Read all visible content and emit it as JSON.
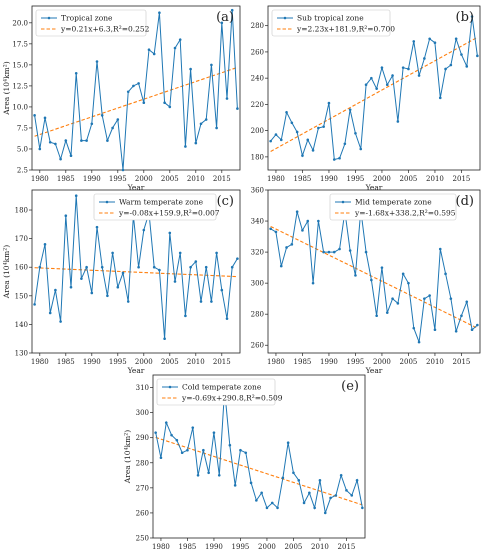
{
  "chart_data": [
    {
      "type": "line",
      "panel_tag": "(a)",
      "xlabel": "Year",
      "ylabel": "Area (10⁴km²)",
      "xlim": [
        1978.5,
        2018.5
      ],
      "ylim": [
        2.5,
        22
      ],
      "xticks": [
        1980,
        1985,
        1990,
        1995,
        2000,
        2005,
        2010,
        2015
      ],
      "yticks": [
        2.5,
        5.0,
        7.5,
        10.0,
        12.5,
        15.0,
        17.5,
        20.0
      ],
      "ytick_labels": [
        "2.5",
        "5.0",
        "7.5",
        "10.0",
        "12.5",
        "15.0",
        "17.5",
        "20.0"
      ],
      "legend_position": "top-left",
      "series": [
        {
          "name": "Tropical zone",
          "x": [
            1979,
            1980,
            1981,
            1982,
            1983,
            1984,
            1985,
            1986,
            1987,
            1988,
            1989,
            1990,
            1991,
            1992,
            1993,
            1994,
            1995,
            1996,
            1997,
            1998,
            1999,
            2000,
            2001,
            2002,
            2003,
            2004,
            2005,
            2006,
            2007,
            2008,
            2009,
            2010,
            2011,
            2012,
            2013,
            2014,
            2015,
            2016,
            2017,
            2018
          ],
          "values": [
            9.0,
            5.0,
            8.7,
            5.8,
            5.6,
            3.8,
            6.0,
            4.2,
            14.0,
            6.0,
            6.0,
            8.0,
            15.4,
            9.0,
            6.0,
            7.5,
            8.5,
            2.5,
            11.8,
            12.5,
            12.8,
            10.5,
            16.8,
            16.3,
            21.2,
            10.5,
            10.0,
            17.0,
            18.0,
            5.3,
            14.5,
            5.7,
            8.0,
            8.5,
            15.0,
            7.5,
            20.0,
            11.0,
            21.5,
            9.8
          ]
        }
      ],
      "trend": {
        "name": "y=0.21x+6.3,R²=0.252",
        "slope": 0.21,
        "intercept": 6.3
      }
    },
    {
      "type": "line",
      "panel_tag": "(b)",
      "xlabel": "Year",
      "ylabel": "",
      "xlim": [
        1978.5,
        2018.5
      ],
      "ylim": [
        170,
        295
      ],
      "xticks": [
        1980,
        1985,
        1990,
        1995,
        2000,
        2005,
        2010,
        2015
      ],
      "yticks": [
        180,
        200,
        220,
        240,
        260,
        280
      ],
      "ytick_labels": [
        "180",
        "200",
        "220",
        "240",
        "260",
        "280"
      ],
      "legend_position": "top-left",
      "series": [
        {
          "name": "Sub tropical zone",
          "x": [
            1979,
            1980,
            1981,
            1982,
            1983,
            1984,
            1985,
            1986,
            1987,
            1988,
            1989,
            1990,
            1991,
            1992,
            1993,
            1994,
            1995,
            1996,
            1997,
            1998,
            1999,
            2000,
            2001,
            2002,
            2003,
            2004,
            2005,
            2006,
            2007,
            2008,
            2009,
            2010,
            2011,
            2012,
            2013,
            2014,
            2015,
            2016,
            2017,
            2018
          ],
          "values": [
            192,
            197,
            193,
            214,
            206,
            199,
            181,
            193,
            185,
            202,
            203,
            221,
            178,
            179,
            190,
            216,
            198,
            186,
            235,
            240,
            232,
            248,
            235,
            242,
            207,
            248,
            247,
            268,
            242,
            255,
            270,
            267,
            225,
            247,
            250,
            270,
            258,
            249,
            287,
            257
          ]
        }
      ],
      "trend": {
        "name": "y=2.23x+181.9,R²=0.700",
        "slope": 2.23,
        "intercept": 181.9
      }
    },
    {
      "type": "line",
      "panel_tag": "(c)",
      "xlabel": "Year",
      "ylabel": "Area (10⁴km²)",
      "xlim": [
        1978.5,
        2018.5
      ],
      "ylim": [
        130,
        187
      ],
      "xticks": [
        1980,
        1985,
        1990,
        1995,
        2000,
        2005,
        2010,
        2015
      ],
      "yticks": [
        130,
        140,
        150,
        160,
        170,
        180
      ],
      "ytick_labels": [
        "130",
        "140",
        "150",
        "160",
        "170",
        "180"
      ],
      "legend_position": "top-right",
      "series": [
        {
          "name": "Warm temperate zone",
          "x": [
            1979,
            1980,
            1981,
            1982,
            1983,
            1984,
            1985,
            1986,
            1987,
            1988,
            1989,
            1990,
            1991,
            1992,
            1993,
            1994,
            1995,
            1996,
            1997,
            1998,
            1999,
            2000,
            2001,
            2002,
            2003,
            2004,
            2005,
            2006,
            2007,
            2008,
            2009,
            2010,
            2011,
            2012,
            2013,
            2014,
            2015,
            2016,
            2017,
            2018
          ],
          "values": [
            147,
            160,
            168,
            144,
            152,
            141,
            178,
            153,
            185,
            156,
            160,
            151,
            174,
            160,
            150,
            165,
            153,
            158,
            148,
            178,
            160,
            173,
            179,
            160,
            159,
            135,
            172,
            155,
            165,
            143,
            160,
            162,
            148,
            160,
            148,
            165,
            152,
            142,
            160,
            163
          ]
        }
      ],
      "trend": {
        "name": "y=-0.08x+159.9,R²=0.007",
        "slope": -0.08,
        "intercept": 159.9
      }
    },
    {
      "type": "line",
      "panel_tag": "(d)",
      "xlabel": "Year",
      "ylabel": "",
      "xlim": [
        1978.5,
        2018.5
      ],
      "ylim": [
        255,
        360
      ],
      "xticks": [
        1980,
        1985,
        1990,
        1995,
        2000,
        2005,
        2010,
        2015
      ],
      "yticks": [
        260,
        280,
        300,
        320,
        340,
        360
      ],
      "ytick_labels": [
        "260",
        "280",
        "300",
        "320",
        "340",
        "360"
      ],
      "legend_position": "top-right",
      "series": [
        {
          "name": "Mid temperate zone",
          "x": [
            1979,
            1980,
            1981,
            1982,
            1983,
            1984,
            1985,
            1986,
            1987,
            1988,
            1989,
            1990,
            1991,
            1992,
            1993,
            1994,
            1995,
            1996,
            1997,
            1998,
            1999,
            2000,
            2001,
            2002,
            2003,
            2004,
            2005,
            2006,
            2007,
            2008,
            2009,
            2010,
            2011,
            2012,
            2013,
            2014,
            2015,
            2016,
            2017,
            2018
          ],
          "values": [
            335,
            333,
            311,
            323,
            325,
            346,
            334,
            340,
            300,
            340,
            320,
            320,
            320,
            322,
            346,
            321,
            305,
            347,
            320,
            302,
            279,
            310,
            281,
            290,
            287,
            306,
            300,
            271,
            262,
            290,
            292,
            270,
            322,
            306,
            290,
            269,
            279,
            288,
            270,
            273
          ]
        }
      ],
      "trend": {
        "name": "y=-1.68x+338.2,R²=0.595",
        "slope": -1.68,
        "intercept": 338.2
      }
    },
    {
      "type": "line",
      "panel_tag": "(e)",
      "xlabel": "Year",
      "ylabel": "Area (10⁴km²)",
      "xlim": [
        1978.5,
        2018.5
      ],
      "ylim": [
        250,
        315
      ],
      "xticks": [
        1980,
        1985,
        1990,
        1995,
        2000,
        2005,
        2010,
        2015
      ],
      "yticks": [
        250,
        260,
        270,
        280,
        290,
        300,
        310
      ],
      "ytick_labels": [
        "250",
        "260",
        "270",
        "280",
        "290",
        "300",
        "310"
      ],
      "legend_position": "top-left",
      "series": [
        {
          "name": "Cold temperate zone",
          "x": [
            1979,
            1980,
            1981,
            1982,
            1983,
            1984,
            1985,
            1986,
            1987,
            1988,
            1989,
            1990,
            1991,
            1992,
            1993,
            1994,
            1995,
            1996,
            1997,
            1998,
            1999,
            2000,
            2001,
            2002,
            2003,
            2004,
            2005,
            2006,
            2007,
            2008,
            2009,
            2010,
            2011,
            2012,
            2013,
            2014,
            2015,
            2016,
            2017,
            2018
          ],
          "values": [
            292,
            282,
            296,
            291,
            289,
            284,
            285,
            294,
            275,
            285,
            276,
            292,
            275,
            309,
            287,
            271,
            285,
            284,
            272,
            265,
            268,
            262,
            264,
            262,
            274,
            288,
            276,
            273,
            264,
            268,
            262,
            273,
            260,
            266,
            267,
            275,
            269,
            267,
            273,
            262
          ]
        }
      ],
      "trend": {
        "name": "y=-0.69x+290.8,R²=0.509",
        "slope": -0.69,
        "intercept": 290.8
      }
    }
  ]
}
